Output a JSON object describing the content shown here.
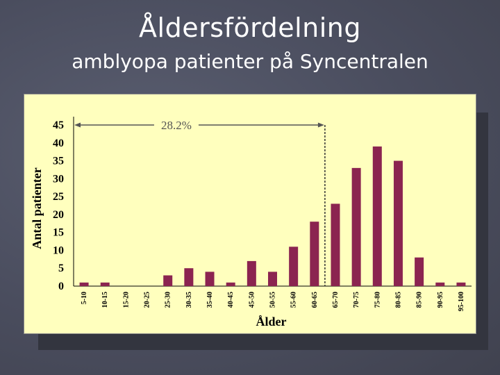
{
  "title": "Åldersfördelning",
  "subtitle": "amblyopa patienter på Syncentralen",
  "colors": {
    "background": "#4a4d5e",
    "plot_bg": "#ffffbe",
    "bar": "#8b2450",
    "title_text": "#ffffff"
  },
  "chart_data": {
    "type": "bar",
    "title": "",
    "xlabel": "Ålder",
    "ylabel": "Antal patienter",
    "ylim": [
      0,
      45
    ],
    "yticks": [
      0,
      5,
      10,
      15,
      20,
      25,
      30,
      35,
      40,
      45
    ],
    "categories": [
      "5-10",
      "10-15",
      "15-20",
      "20-25",
      "25-30",
      "30-35",
      "35-40",
      "40-45",
      "45-50",
      "50-55",
      "55-60",
      "60-65",
      "65-70",
      "70-75",
      "75-80",
      "80-85",
      "85-90",
      "90-95",
      "95-100"
    ],
    "values": [
      1,
      1,
      0,
      0,
      3,
      5,
      4,
      1,
      7,
      4,
      11,
      18,
      23,
      33,
      39,
      35,
      8,
      1,
      1
    ],
    "annotation": {
      "text": "28.2%",
      "range_end_category": "60-65"
    },
    "grid": false
  }
}
